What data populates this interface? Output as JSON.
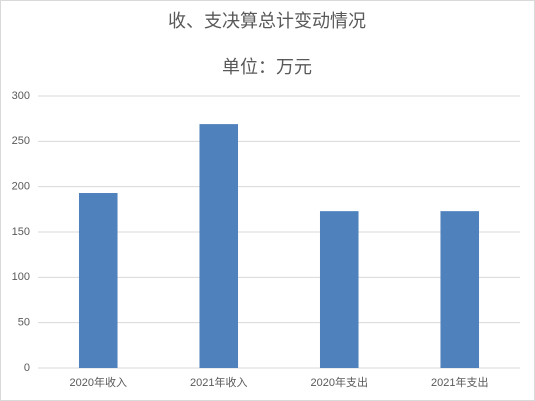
{
  "chart_data": {
    "type": "bar",
    "title": "收、支决算总计变动情况",
    "subtitle": "单位：万元",
    "categories": [
      "2020年收入",
      "2021年收入",
      "2020年支出",
      "2021年支出"
    ],
    "values": [
      193,
      269,
      173,
      173
    ],
    "color": "#4f81bd",
    "ylim": [
      0,
      300
    ],
    "yticks": [
      0,
      50,
      100,
      150,
      200,
      250,
      300
    ],
    "grid": true
  }
}
